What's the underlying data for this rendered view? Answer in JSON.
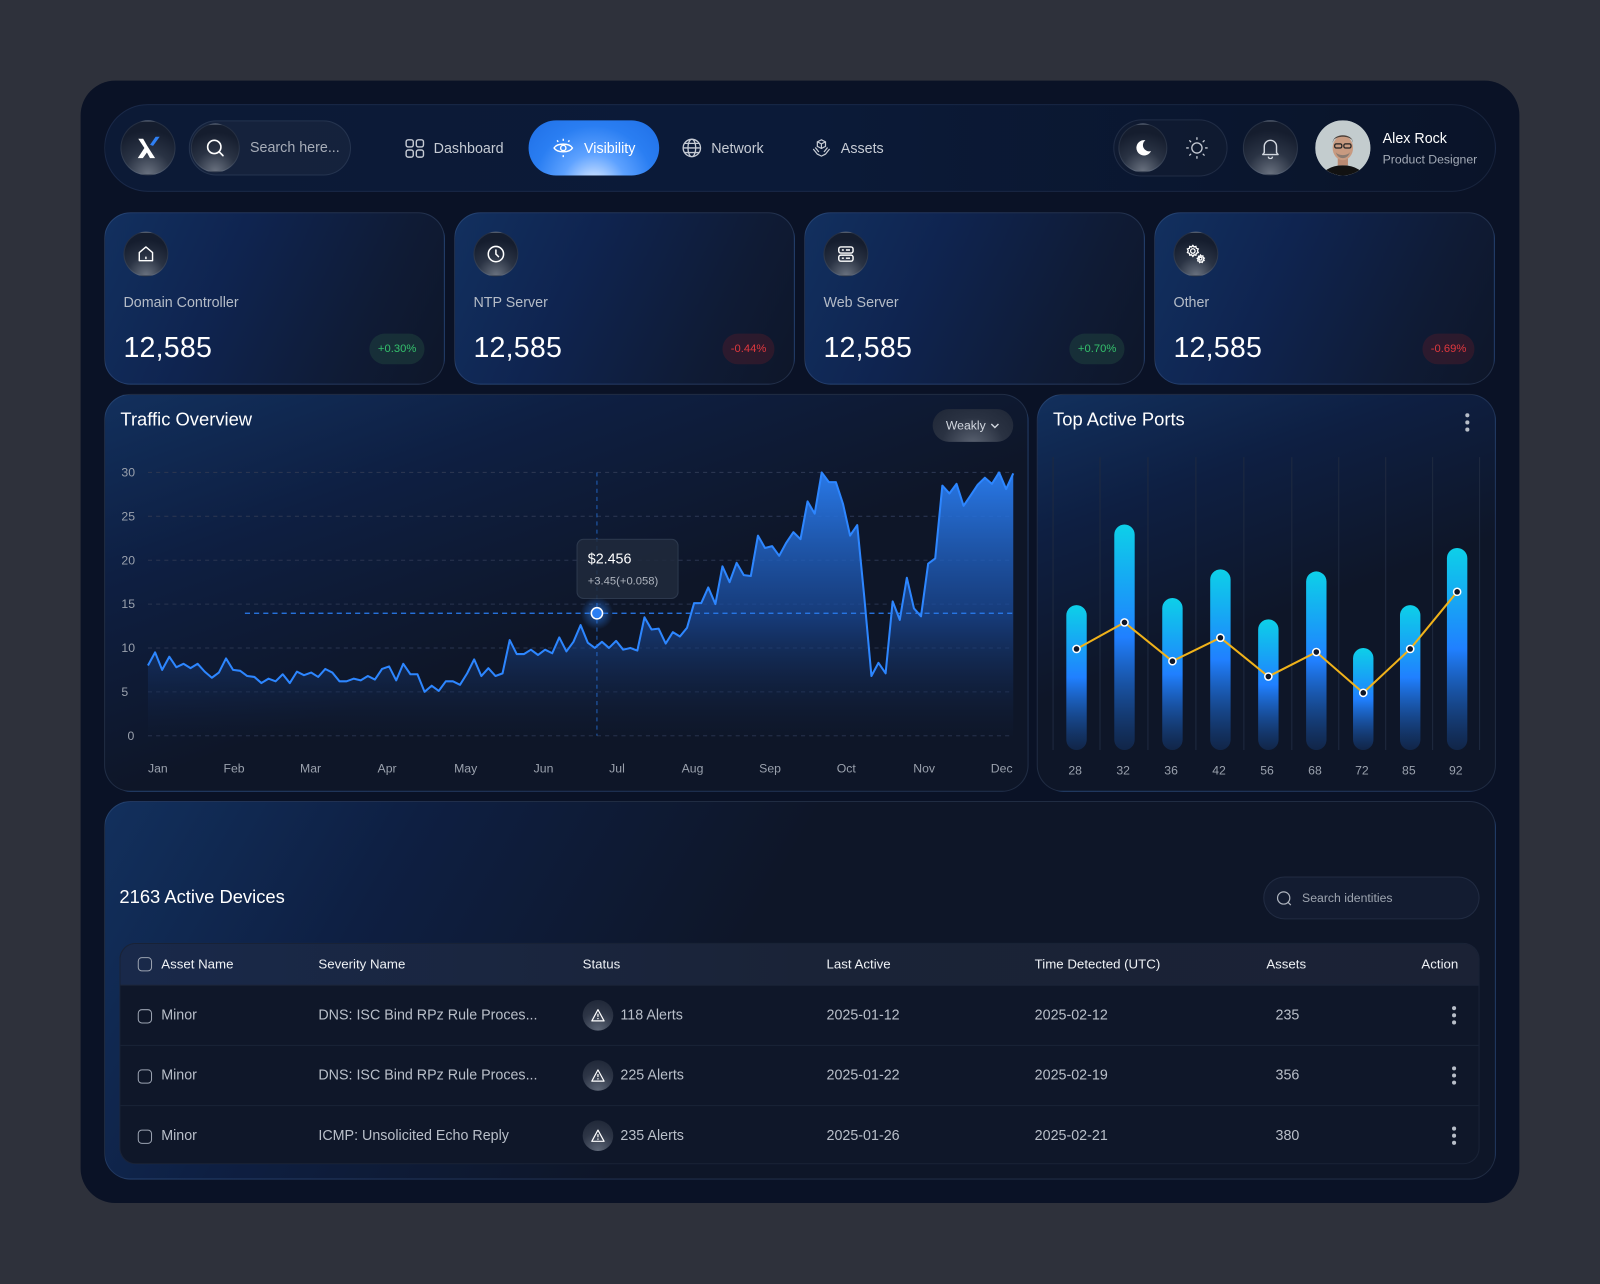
{
  "header": {
    "logo": "x-logo",
    "search_placeholder": "Search here...",
    "nav": [
      {
        "label": "Dashboard",
        "icon": "grid-icon",
        "active": false
      },
      {
        "label": "Visibility",
        "icon": "eye-icon",
        "active": true
      },
      {
        "label": "Network",
        "icon": "globe-icon",
        "active": false
      },
      {
        "label": "Assets",
        "icon": "box-hand-icon",
        "active": false
      }
    ],
    "theme_toggle": {
      "options": [
        "moon-icon",
        "sun-icon"
      ],
      "selected": "dark"
    },
    "notifications_icon": "bell-icon",
    "user": {
      "name": "Alex Rock",
      "role": "Product Designer"
    }
  },
  "stats": [
    {
      "label": "Domain Controller",
      "value": "12,585",
      "change": "+0.30%",
      "trend": "up",
      "icon": "home-icon"
    },
    {
      "label": "NTP Server",
      "value": "12,585",
      "change": "-0.44%",
      "trend": "down",
      "icon": "clock-icon"
    },
    {
      "label": "Web Server",
      "value": "12,585",
      "change": "+0.70%",
      "trend": "up",
      "icon": "server-icon"
    },
    {
      "label": "Other",
      "value": "12,585",
      "change": "-0.69%",
      "trend": "down",
      "icon": "gears-icon"
    }
  ],
  "traffic": {
    "title": "Traffic Overview",
    "period": "Weakly",
    "tooltip": {
      "value": "$2.456",
      "change": "+3.45(+0.058)"
    }
  },
  "ports": {
    "title": "Top Active Ports"
  },
  "colors": {
    "accent": "#2a7ef2",
    "up": "#34c06c",
    "down": "#e0383e",
    "line": "#f0b21a",
    "bar_top": "#0dd0e8",
    "bar_mid": "#2080ff"
  },
  "chart_data": [
    {
      "type": "area",
      "title": "Traffic Overview",
      "xlabel": "",
      "ylabel": "",
      "categories": [
        "Jan",
        "Feb",
        "Mar",
        "Apr",
        "May",
        "Jun",
        "Jul",
        "Aug",
        "Sep",
        "Oct",
        "Nov",
        "Dec"
      ],
      "yticks": [
        0,
        5,
        10,
        15,
        20,
        25,
        30
      ],
      "ylim": [
        0,
        30
      ],
      "grid": true,
      "series": [
        {
          "name": "Traffic",
          "values": [
            8,
            9.5,
            7.5,
            9,
            7.8,
            8.2,
            7.7,
            8.2,
            7.3,
            6.6,
            7.2,
            8.8,
            7.5,
            7.4,
            6.8,
            6.7,
            6,
            6.5,
            6.2,
            7,
            6,
            7.3,
            6.9,
            7.2,
            6.7,
            7.6,
            7.2,
            6.2,
            6.2,
            6.5,
            6.3,
            6.8,
            6.4,
            7.6,
            7.9,
            6.3,
            8.2,
            7,
            7,
            5,
            5.7,
            5.1,
            6.2,
            6.2,
            5.8,
            7.1,
            8.7,
            6.8,
            7.7,
            6.8,
            7.1,
            10.9,
            9.3,
            9.3,
            9.8,
            9.2,
            9.8,
            9.4,
            11.2,
            9.6,
            10.7,
            12.6,
            10.6,
            10,
            10.7,
            10,
            10.8,
            9.8,
            10,
            9.7,
            13.5,
            12.1,
            12.2,
            10.5,
            11.8,
            11.3,
            12.3,
            15.1,
            15.1,
            16.9,
            15,
            19.3,
            17.5,
            19.7,
            18.3,
            18.2,
            22.8,
            21.4,
            21.6,
            20.5,
            22,
            23.2,
            22.4,
            26.7,
            25.3,
            30,
            28.9,
            28.9,
            26.4,
            22.8,
            24,
            15.8,
            6.8,
            8.3,
            7.1,
            15.3,
            13.2,
            18,
            14.5,
            13.6,
            19.6,
            20.2,
            28.5,
            27.6,
            28.7,
            26.2,
            27.4,
            28.6,
            29.4,
            28.7,
            30,
            28.1,
            29.9
          ]
        }
      ],
      "highlight": {
        "month": "Jul",
        "value": 14,
        "label": "$2.456",
        "sublabel": "+3.45(+0.058)"
      }
    },
    {
      "type": "bar",
      "title": "Top Active Ports",
      "categories": [
        "28",
        "32",
        "36",
        "42",
        "56",
        "68",
        "72",
        "85",
        "92"
      ],
      "series": [
        {
          "name": "Bars",
          "values": [
            142,
            221,
            149,
            177,
            128,
            175,
            100,
            142,
            198
          ]
        },
        {
          "name": "Line",
          "values": [
            99,
            125,
            87,
            110,
            72,
            96,
            56,
            99,
            155
          ]
        }
      ],
      "grid": true
    }
  ],
  "devices": {
    "title": "2163 Active Devices",
    "search_placeholder": "Search identities",
    "columns": [
      "Asset Name",
      "Severity Name",
      "Status",
      "Last Active",
      "Time Detected (UTC)",
      "Assets",
      "Action"
    ],
    "rows": [
      {
        "asset": "Minor",
        "severity": "DNS: ISC Bind RPz Rule Proces...",
        "status": "118 Alerts",
        "last_active": "2025-01-12",
        "detected": "2025-02-12",
        "assets": "235"
      },
      {
        "asset": "Minor",
        "severity": "DNS: ISC Bind RPz Rule Proces...",
        "status": "225 Alerts",
        "last_active": "2025-01-22",
        "detected": "2025-02-19",
        "assets": "356"
      },
      {
        "asset": "Minor",
        "severity": "ICMP: Unsolicited Echo Reply",
        "status": "235 Alerts",
        "last_active": "2025-01-26",
        "detected": "2025-02-21",
        "assets": "380"
      }
    ]
  }
}
